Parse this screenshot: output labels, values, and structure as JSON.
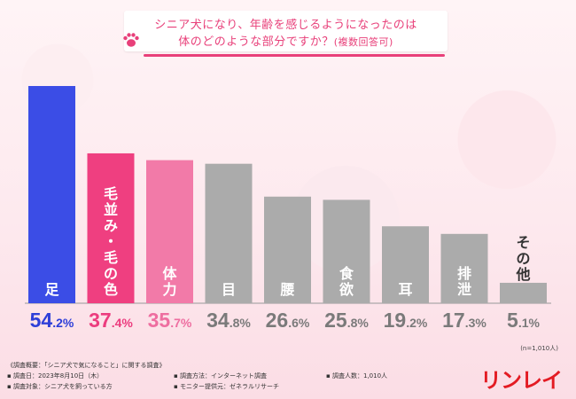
{
  "title": {
    "line1": "シニア犬になり、年齢を感じるようになったのは",
    "line2": "体のどのような部分ですか？",
    "line2_note": "(複数回答可)"
  },
  "colors": {
    "accent": "#e8407a",
    "bar_blue": "#3b4de6",
    "bar_pink": "#ef3f80",
    "bar_lightpink": "#f27aa8",
    "bar_gray": "#ababab",
    "value_blue": "#2e3fd8",
    "value_pink": "#ec3c7e",
    "value_lightpink": "#ee6ea0",
    "value_gray": "#7a7a7a"
  },
  "chart_data": {
    "type": "bar",
    "categories": [
      "足",
      "毛並み・毛の色",
      "体力",
      "目",
      "腰",
      "食欲",
      "耳",
      "排泄",
      "その他"
    ],
    "values": [
      54.2,
      37.4,
      35.7,
      34.8,
      26.6,
      25.8,
      19.2,
      17.3,
      5.1
    ],
    "unit": "%",
    "value_labels": [
      "54.2%",
      "37.4%",
      "35.7%",
      "34.8%",
      "26.6%",
      "25.8%",
      "19.2%",
      "17.3%",
      "5.1%"
    ],
    "title": "シニア犬になり、年齢を感じるようになったのは体のどのような部分ですか？(複数回答可)",
    "xlabel": "",
    "ylabel": "",
    "ylim": [
      0,
      60
    ],
    "grid": false,
    "legend": "none"
  },
  "sample_note": "(n=1,010人)",
  "footer": {
    "survey_heading": "《調査概要：「シニア犬で気になること」に関する調査》",
    "survey_date": "調査日：2023年8月10日（木）",
    "survey_target": "調査対象：シニア犬を飼っている方",
    "survey_method": "調査方法：インターネット調査",
    "monitor_provider": "モニター提供元：ゼネラルリサーチ",
    "survey_count": "調査人数：1,010人"
  },
  "logo_text": "リンレイ"
}
